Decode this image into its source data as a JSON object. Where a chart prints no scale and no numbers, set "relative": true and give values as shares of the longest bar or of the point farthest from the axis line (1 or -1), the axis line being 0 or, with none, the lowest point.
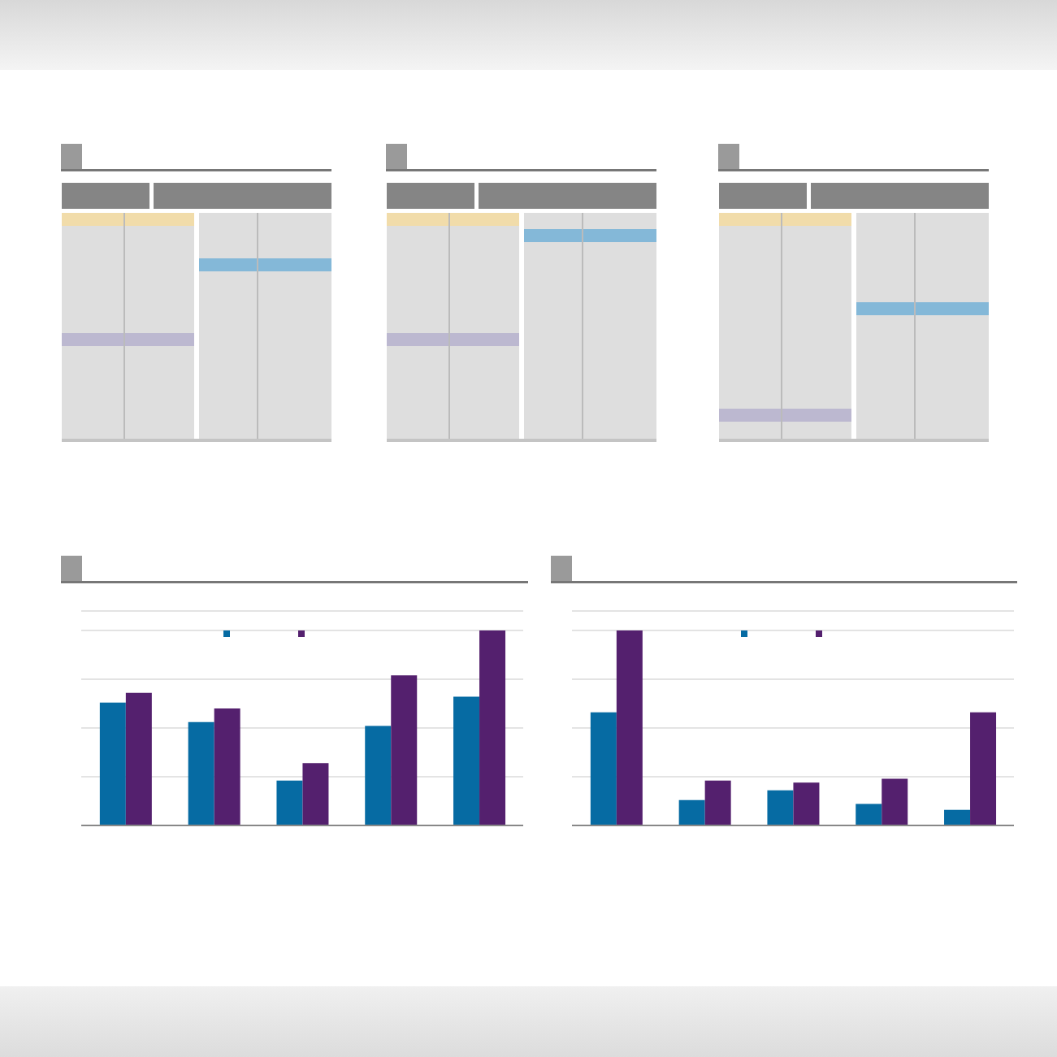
{
  "chart_data": [
    {
      "type": "bar",
      "relative": true,
      "grid": "y",
      "categories": [
        null,
        null,
        null,
        null,
        null
      ],
      "series": [
        {
          "color": "#066ba3",
          "values": [
            0.63,
            0.53,
            0.23,
            0.51,
            0.66
          ]
        },
        {
          "color": "#54206e",
          "values": [
            0.68,
            0.6,
            0.32,
            0.77,
            1
          ]
        }
      ]
    },
    {
      "type": "bar",
      "relative": true,
      "grid": "y",
      "categories": [
        null,
        null,
        null,
        null,
        null
      ],
      "series": [
        {
          "color": "#066ba3",
          "values": [
            0.58,
            0.13,
            0.18,
            0.11,
            0.08
          ]
        },
        {
          "color": "#54206e",
          "values": [
            1,
            0.23,
            0.22,
            0.24,
            0.58
          ]
        }
      ]
    }
  ]
}
